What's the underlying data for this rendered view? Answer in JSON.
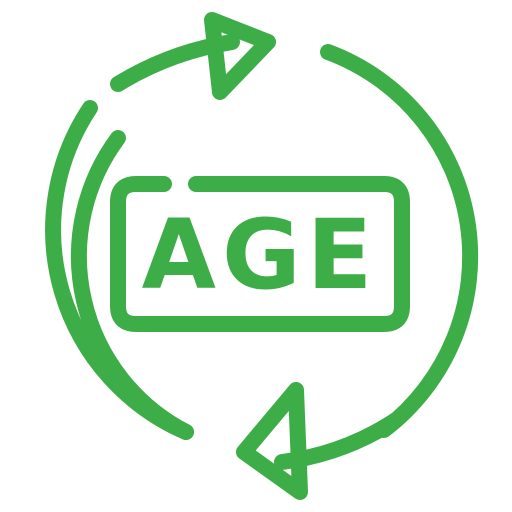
{
  "icon": {
    "name": "age-cycle-icon",
    "label": "AGE",
    "color": "#3dad48"
  }
}
